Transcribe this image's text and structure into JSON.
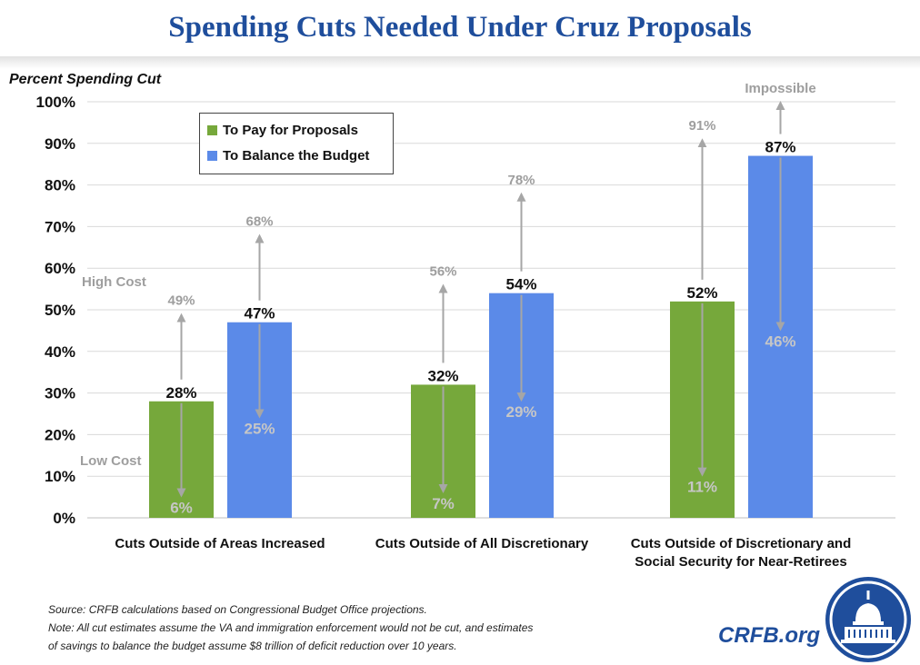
{
  "header": {
    "title": "Spending Cuts Needed Under Cruz Proposals"
  },
  "chart_data": {
    "type": "bar",
    "ylabel": "Percent Spending Cut",
    "xlabel": "",
    "ylim": [
      0,
      100
    ],
    "y_ticks": [
      "0%",
      "10%",
      "20%",
      "30%",
      "40%",
      "50%",
      "60%",
      "70%",
      "80%",
      "90%",
      "100%"
    ],
    "categories": [
      [
        "Cuts Outside of Areas Increased"
      ],
      [
        "Cuts Outside of All Discretionary"
      ],
      [
        "Cuts Outside of Discretionary and",
        "Social Security for Near-Retirees"
      ]
    ],
    "series": [
      {
        "name": "To Pay for Proposals",
        "color": "#76a83b",
        "values": [
          28,
          32,
          52
        ],
        "labels": [
          "28%",
          "32%",
          "52%"
        ],
        "high": [
          49,
          56,
          91
        ],
        "high_labels": [
          "49%",
          "56%",
          "91%"
        ],
        "low": [
          6,
          7,
          11
        ],
        "low_labels": [
          "6%",
          "7%",
          "11%"
        ]
      },
      {
        "name": "To Balance the Budget",
        "color": "#5b8ae8",
        "values": [
          47,
          54,
          87
        ],
        "labels": [
          "47%",
          "54%",
          "87%"
        ],
        "high": [
          68,
          78,
          null
        ],
        "high_labels": [
          "68%",
          "78%",
          "Impossible"
        ],
        "low": [
          25,
          29,
          46
        ],
        "low_labels": [
          "25%",
          "29%",
          "46%"
        ]
      }
    ],
    "annotations": {
      "high_cost": "High Cost",
      "low_cost": "Low Cost"
    },
    "legend_position": "top-left",
    "grid": true
  },
  "footer": {
    "source": "Source: CRFB calculations based on Congressional Budget Office projections.",
    "note_line1": "Note: All cut estimates assume the VA and immigration enforcement would not be cut, and estimates",
    "note_line2": "of savings to balance the budget assume $8 trillion of deficit reduction over 10 years.",
    "brand": "CRFB.org"
  }
}
